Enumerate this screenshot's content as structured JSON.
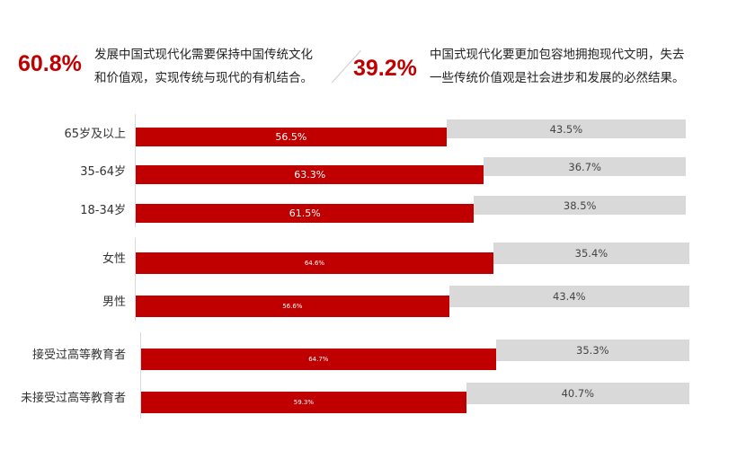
{
  "header": {
    "left": {
      "value": "60.8%",
      "text": "发展中国式现代化需要保持中国传统文化和价值观，实现传统与现代的有机结合。"
    },
    "right": {
      "value": "39.2%",
      "text": "中国式现代化要更加包容地拥抱现代文明，失去一些传统价值观是社会进步和发展的必然结果。"
    }
  },
  "chart_data": {
    "type": "bar",
    "orientation": "horizontal-stacked-100",
    "colors": {
      "series1": "#c00000",
      "series2": "#d9d9d9"
    },
    "groups": [
      {
        "categories": [
          "65岁及以上",
          "35-64岁",
          "18-34岁"
        ],
        "series1": [
          56.5,
          63.3,
          61.5
        ],
        "series2": [
          43.5,
          36.7,
          38.5
        ]
      },
      {
        "categories": [
          "女性",
          "男性"
        ],
        "series1": [
          64.6,
          56.6
        ],
        "series2": [
          35.4,
          43.4
        ]
      },
      {
        "categories": [
          "接受过高等教育者",
          "未接受过高等教育者"
        ],
        "series1": [
          64.7,
          59.3
        ],
        "series2": [
          35.3,
          40.7
        ]
      }
    ]
  }
}
